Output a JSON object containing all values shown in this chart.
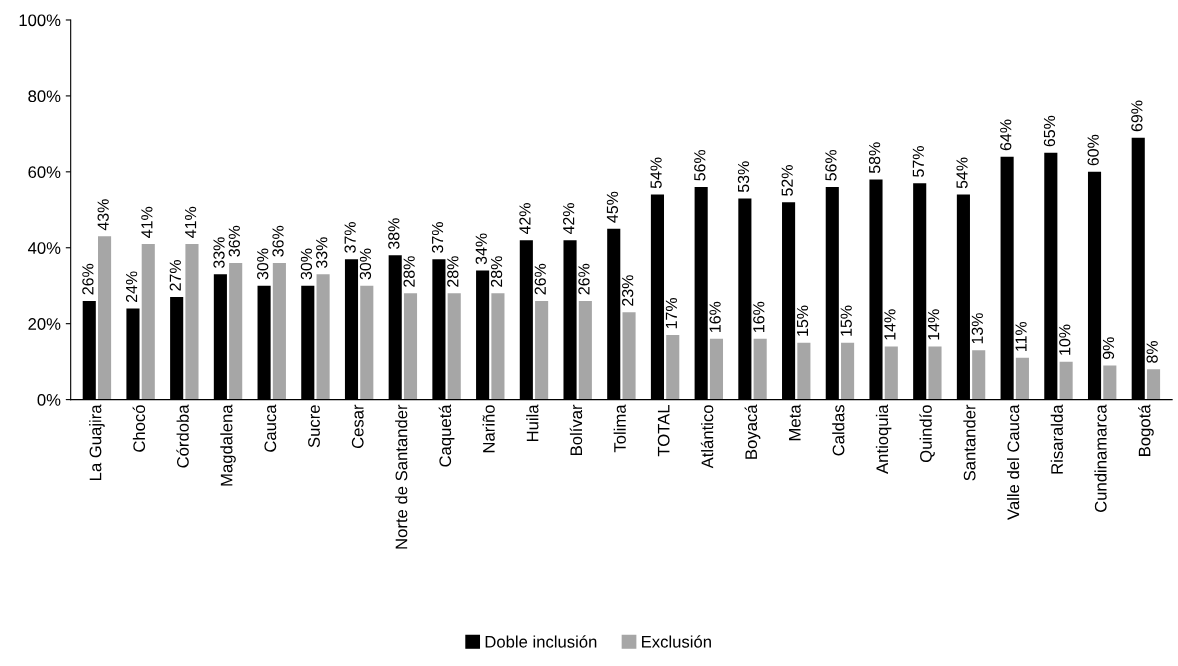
{
  "chart_data": {
    "type": "bar",
    "categories": [
      "La Guajira",
      "Chocó",
      "Córdoba",
      "Magdalena",
      "Cauca",
      "Sucre",
      "Cesar",
      "Norte de Santander",
      "Caquetá",
      "Nariño",
      "Huila",
      "Bolívar",
      "Tolima",
      "TOTAL",
      "Atlántico",
      "Boyacá",
      "Meta",
      "Caldas",
      "Antioquia",
      "Quindío",
      "Santander",
      "Valle del Cauca",
      "Risaralda",
      "Cundinamarca",
      "Bogotá"
    ],
    "series": [
      {
        "name": "Doble inclusión",
        "color": "#000000",
        "values": [
          26,
          24,
          27,
          33,
          30,
          30,
          37,
          38,
          37,
          34,
          42,
          42,
          45,
          54,
          56,
          53,
          52,
          56,
          58,
          57,
          54,
          64,
          65,
          60,
          69
        ],
        "value_labels": [
          "26%",
          "24%",
          "27%",
          "33%",
          "30%",
          "30%",
          "37%",
          "38%",
          "37%",
          "34%",
          "42%",
          "42%",
          "45%",
          "54%",
          "56%",
          "53%",
          "52%",
          "56%",
          "58%",
          "57%",
          "54%",
          "64%",
          "65%",
          "60%",
          "69%"
        ]
      },
      {
        "name": "Exclusión",
        "color": "#a6a6a6",
        "values": [
          43,
          41,
          41,
          36,
          36,
          33,
          30,
          28,
          28,
          28,
          26,
          26,
          23,
          17,
          16,
          16,
          15,
          15,
          14,
          14,
          13,
          11,
          10,
          9,
          8
        ],
        "value_labels": [
          "43%",
          "41%",
          "41%",
          "36%",
          "36%",
          "33%",
          "30%",
          "28%",
          "28%",
          "28%",
          "26%",
          "26%",
          "23%",
          "17%",
          "16%",
          "16%",
          "15%",
          "15%",
          "14%",
          "14%",
          "13%",
          "11%",
          "10%",
          "9%",
          "8%"
        ]
      }
    ],
    "ylim": [
      0,
      100
    ],
    "yticks": [
      {
        "value": 0,
        "label": "0%"
      },
      {
        "value": 20,
        "label": "20%"
      },
      {
        "value": 40,
        "label": "40%"
      },
      {
        "value": 60,
        "label": "60%"
      },
      {
        "value": 80,
        "label": "80%"
      },
      {
        "value": 100,
        "label": "100%"
      }
    ],
    "grid": false,
    "legend": "bottom"
  }
}
